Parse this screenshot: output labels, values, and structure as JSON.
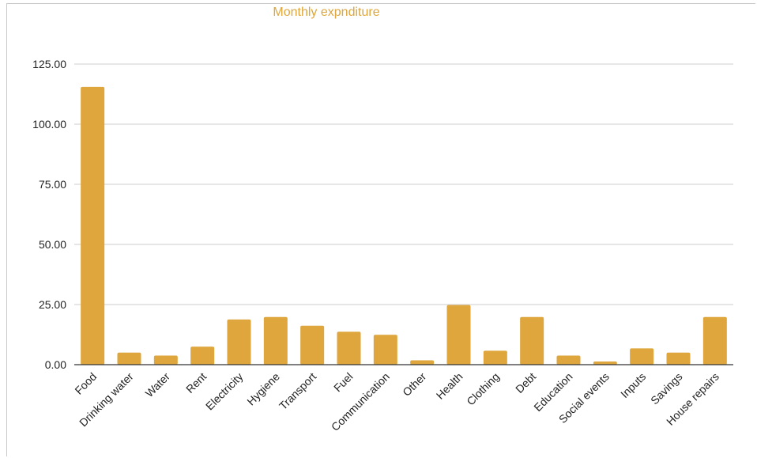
{
  "colors": {
    "bar": "#dea63c",
    "title": "#dea63c",
    "grid": "#cccccc",
    "axis": "#333333"
  },
  "chart_data": {
    "type": "bar",
    "title": "Monthly expnditure",
    "xlabel": "",
    "ylabel": "",
    "ylim": [
      0,
      125
    ],
    "yticks": [
      "0.00",
      "25.00",
      "50.00",
      "75.00",
      "100.00",
      "125.00"
    ],
    "grid": true,
    "categories": [
      "Food",
      "Drinking water",
      "Water",
      "Rent",
      "Electricity",
      "Hygiene",
      "Transport",
      "Fuel",
      "Communication",
      "Other",
      "Health",
      "Clothing",
      "Debt",
      "Education",
      "Social events",
      "Inputs",
      "Savings",
      "House repairs"
    ],
    "values": [
      115.5,
      5.0,
      3.8,
      7.5,
      18.8,
      19.8,
      16.2,
      13.7,
      12.4,
      1.8,
      24.8,
      5.8,
      19.8,
      3.8,
      1.3,
      6.8,
      5.0,
      19.8
    ]
  }
}
